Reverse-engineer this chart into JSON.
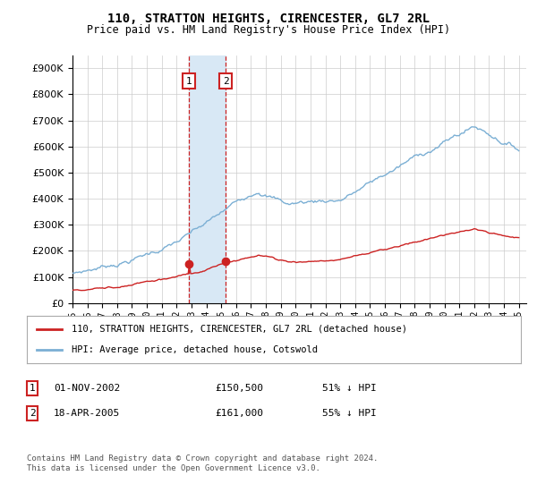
{
  "title": "110, STRATTON HEIGHTS, CIRENCESTER, GL7 2RL",
  "subtitle": "Price paid vs. HM Land Registry's House Price Index (HPI)",
  "hpi_label": "HPI: Average price, detached house, Cotswold",
  "property_label": "110, STRATTON HEIGHTS, CIRENCESTER, GL7 2RL (detached house)",
  "transaction1_date": "01-NOV-2002",
  "transaction1_price": "£150,500",
  "transaction1_hpi": "51% ↓ HPI",
  "transaction2_date": "18-APR-2005",
  "transaction2_price": "£161,000",
  "transaction2_hpi": "55% ↓ HPI",
  "footer": "Contains HM Land Registry data © Crown copyright and database right 2024.\nThis data is licensed under the Open Government Licence v3.0.",
  "hpi_color": "#7bafd4",
  "property_color": "#cc2222",
  "highlight_color": "#d8e8f5",
  "vline1_color": "#cc2222",
  "vline2_color": "#cc2222",
  "ylim_max": 950000,
  "ylim_min": 0,
  "transaction1_x": 2002.83,
  "transaction2_x": 2005.29,
  "background_color": "#ffffff",
  "grid_color": "#cccccc",
  "xmin": 1995,
  "xmax": 2025.5
}
